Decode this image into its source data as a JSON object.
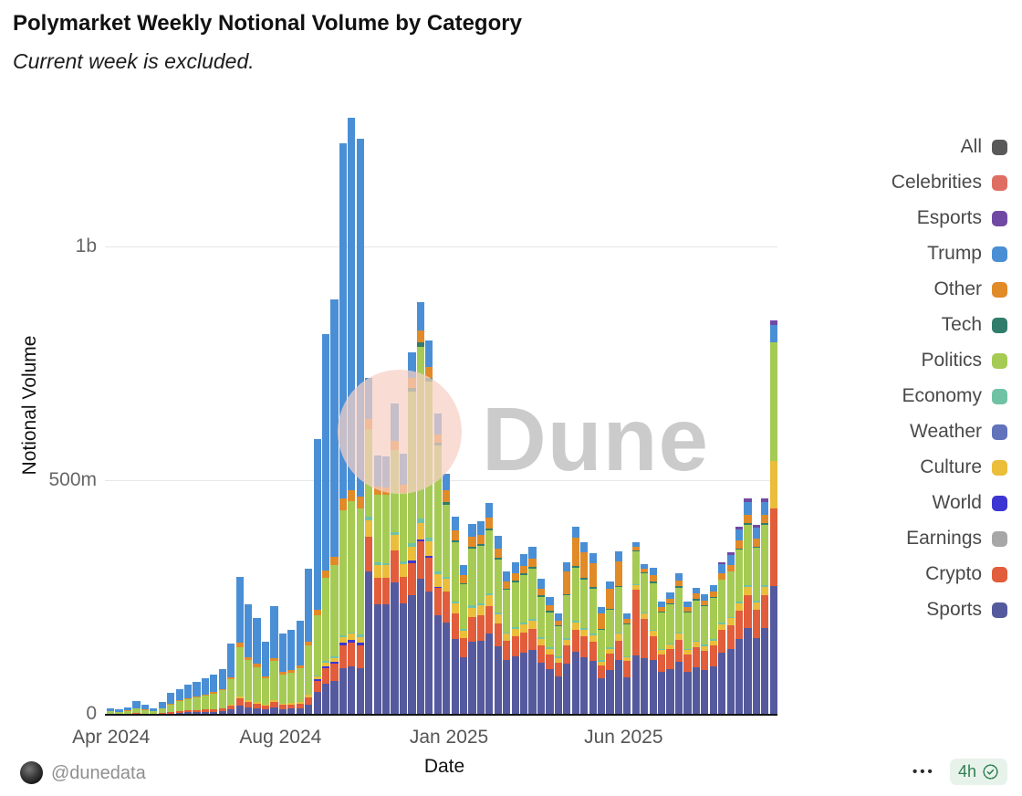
{
  "header": {
    "title": "Polymarket Weekly Notional Volume by Category",
    "subtitle": "Current week is excluded."
  },
  "watermark": {
    "text": "Dune"
  },
  "legend": [
    {
      "label": "All",
      "color": "#595959"
    },
    {
      "label": "Celebrities",
      "color": "#df6e62"
    },
    {
      "label": "Esports",
      "color": "#7049a3"
    },
    {
      "label": "Trump",
      "color": "#4a8fd5"
    },
    {
      "label": "Other",
      "color": "#e18a28"
    },
    {
      "label": "Tech",
      "color": "#307d6b"
    },
    {
      "label": "Politics",
      "color": "#a5cb54"
    },
    {
      "label": "Economy",
      "color": "#6fc3a4"
    },
    {
      "label": "Weather",
      "color": "#6173bb"
    },
    {
      "label": "Culture",
      "color": "#eabd3b"
    },
    {
      "label": "World",
      "color": "#3c35d2"
    },
    {
      "label": "Earnings",
      "color": "#a7a7a7"
    },
    {
      "label": "Crypto",
      "color": "#e15d3b"
    },
    {
      "label": "Sports",
      "color": "#555a9e"
    }
  ],
  "footer": {
    "handle": "@dunedata",
    "menu": "•••",
    "updated": "4h"
  },
  "chart_data": {
    "type": "bar",
    "stacked": true,
    "title": "Polymarket Weekly Notional Volume by Category",
    "subtitle": "Current week is excluded.",
    "xlabel": "Date",
    "ylabel": "Notional Volume",
    "unit": "millions USD notional volume per week",
    "weeks": 78,
    "x_range": [
      "Apr 2024",
      "Sep 2025"
    ],
    "x_ticks": [
      {
        "label": "Apr 2024",
        "week": 0.5
      },
      {
        "label": "Aug 2024",
        "week": 20.2
      },
      {
        "label": "Jan 2025",
        "week": 39.8
      },
      {
        "label": "Jun 2025",
        "week": 60.1
      }
    ],
    "y_ticks": [
      {
        "label": "0",
        "value": 0
      },
      {
        "label": "500m",
        "value": 500
      },
      {
        "label": "1b",
        "value": 1000
      }
    ],
    "ylim": [
      0,
      1280
    ],
    "grid": "horizontal",
    "legend_position": "right",
    "stack_order": [
      "sports",
      "crypto",
      "world",
      "culture",
      "economy",
      "politics",
      "tech",
      "other",
      "trump",
      "esports"
    ],
    "colors": {
      "sports": "#555a9e",
      "crypto": "#e15d3b",
      "world": "#3c35d2",
      "culture": "#eabd3b",
      "economy": "#6fc3a4",
      "politics": "#a5cb54",
      "tech": "#307d6b",
      "other": "#e18a28",
      "trump": "#4a8fd5",
      "esports": "#7049a3"
    },
    "series": {
      "trump": [
        6,
        5,
        7,
        16,
        11,
        6,
        14,
        24,
        23,
        28,
        30,
        34,
        38,
        42,
        72,
        140,
        113,
        98,
        74,
        110,
        82,
        86,
        96,
        155,
        365,
        505,
        550,
        760,
        795,
        765,
        87,
        67,
        67,
        80,
        68,
        54,
        61,
        56,
        45,
        36,
        30,
        22,
        28,
        29,
        32,
        27,
        21,
        23,
        24,
        25,
        20,
        17,
        15,
        19,
        24,
        22,
        21,
        14,
        17,
        21,
        11,
        10,
        10,
        16,
        12,
        13,
        15,
        12,
        13,
        12,
        14,
        20,
        21,
        24,
        28,
        25,
        28,
        37
      ],
      "politics": [
        4,
        3,
        5,
        9,
        7,
        4,
        9,
        16,
        21,
        25,
        27,
        30,
        33,
        38,
        54,
        105,
        85,
        74,
        56,
        83,
        62,
        65,
        72,
        105,
        129,
        178,
        195,
        268,
        280,
        270,
        188,
        145,
        145,
        175,
        146,
        323,
        368,
        334,
        269,
        154,
        127,
        95,
        122,
        124,
        135,
        114,
        91,
        97,
        102,
        107,
        86,
        75,
        64,
        91,
        112,
        103,
        96,
        64,
        80,
        97,
        68,
        70,
        85,
        100,
        77,
        83,
        96,
        77,
        86,
        82,
        88,
        91,
        97,
        112,
        129,
        113,
        129,
        255
      ],
      "sports": [
        0,
        0,
        0,
        0,
        0,
        0,
        0,
        0,
        2,
        3,
        3,
        4,
        4,
        5,
        9,
        18,
        14,
        12,
        9,
        14,
        10,
        11,
        12,
        19,
        47,
        65,
        71,
        98,
        102,
        98,
        305,
        235,
        234,
        282,
        236,
        254,
        289,
        262,
        211,
        195,
        160,
        121,
        154,
        157,
        171,
        144,
        116,
        123,
        130,
        136,
        109,
        95,
        81,
        107,
        132,
        121,
        113,
        76,
        94,
        115,
        79,
        125,
        119,
        115,
        89,
        96,
        111,
        89,
        100,
        94,
        102,
        130,
        138,
        160,
        184,
        162,
        184,
        273
      ],
      "crypto": [
        1,
        1,
        1,
        2,
        1,
        1,
        2,
        3,
        4,
        4,
        5,
        5,
        6,
        7,
        8,
        15,
        12,
        10,
        8,
        12,
        9,
        9,
        10,
        16,
        24,
        33,
        36,
        49,
        51,
        49,
        73,
        56,
        56,
        67,
        56,
        69,
        79,
        71,
        58,
        67,
        55,
        41,
        53,
        54,
        59,
        49,
        40,
        42,
        44,
        46,
        37,
        32,
        28,
        39,
        48,
        44,
        41,
        27,
        34,
        42,
        34,
        140,
        84,
        50,
        38,
        42,
        48,
        38,
        43,
        41,
        44,
        49,
        52,
        60,
        69,
        61,
        69,
        167
      ],
      "culture": [
        0,
        0,
        0,
        0,
        0,
        0,
        0,
        0,
        0,
        0,
        0,
        0,
        0,
        0,
        3,
        5,
        4,
        4,
        3,
        4,
        3,
        3,
        4,
        6,
        6,
        8,
        9,
        12,
        13,
        12,
        36,
        28,
        28,
        33,
        28,
        31,
        35,
        32,
        26,
        26,
        21,
        16,
        20,
        21,
        23,
        19,
        15,
        16,
        17,
        18,
        14,
        12,
        11,
        13,
        16,
        15,
        14,
        9,
        11,
        14,
        9,
        10,
        11,
        12,
        10,
        10,
        12,
        10,
        11,
        10,
        11,
        13,
        14,
        16,
        18,
        16,
        18,
        100
      ],
      "other": [
        1,
        0,
        1,
        1,
        1,
        1,
        1,
        2,
        2,
        2,
        3,
        3,
        3,
        3,
        4,
        9,
        7,
        7,
        5,
        7,
        6,
        6,
        6,
        9,
        12,
        16,
        18,
        24,
        25,
        25,
        22,
        17,
        16,
        20,
        17,
        23,
        26,
        24,
        19,
        26,
        21,
        16,
        20,
        19,
        22,
        19,
        15,
        16,
        17,
        18,
        15,
        12,
        10,
        49,
        60,
        55,
        51,
        34,
        43,
        52,
        9,
        8,
        8,
        13,
        10,
        11,
        12,
        10,
        11,
        11,
        11,
        13,
        14,
        16,
        18,
        16,
        18,
        0
      ],
      "economy": [
        0,
        0,
        0,
        0,
        0,
        0,
        0,
        0,
        0,
        0,
        0,
        0,
        0,
        0,
        0,
        0,
        0,
        0,
        0,
        0,
        0,
        0,
        0,
        0,
        2,
        3,
        3,
        4,
        3,
        4,
        7,
        5,
        5,
        7,
        6,
        8,
        10,
        8,
        7,
        5,
        4,
        4,
        5,
        4,
        5,
        4,
        3,
        4,
        4,
        4,
        4,
        3,
        3,
        3,
        4,
        4,
        4,
        3,
        3,
        3,
        2,
        2,
        2,
        3,
        2,
        3,
        3,
        2,
        3,
        3,
        3,
        3,
        3,
        4,
        4,
        4,
        4,
        0
      ],
      "tech": [
        0,
        0,
        0,
        0,
        0,
        0,
        0,
        0,
        0,
        0,
        0,
        0,
        0,
        0,
        0,
        0,
        0,
        0,
        0,
        0,
        0,
        0,
        0,
        0,
        0,
        0,
        0,
        0,
        0,
        0,
        0,
        0,
        0,
        0,
        0,
        7,
        9,
        7,
        5,
        5,
        4,
        3,
        4,
        4,
        4,
        4,
        3,
        3,
        3,
        3,
        3,
        3,
        2,
        3,
        4,
        3,
        3,
        2,
        2,
        3,
        2,
        2,
        2,
        3,
        2,
        2,
        3,
        2,
        3,
        2,
        2,
        1,
        1,
        2,
        3,
        2,
        3,
        0
      ],
      "world": [
        0,
        0,
        0,
        0,
        0,
        0,
        0,
        0,
        0,
        0,
        0,
        0,
        0,
        0,
        0,
        0,
        0,
        0,
        0,
        0,
        0,
        0,
        0,
        0,
        3,
        4,
        4,
        5,
        5,
        6,
        0,
        0,
        0,
        0,
        0,
        4,
        4,
        4,
        3,
        0,
        0,
        0,
        0,
        0,
        0,
        0,
        0,
        0,
        0,
        0,
        0,
        0,
        0,
        0,
        0,
        0,
        0,
        0,
        0,
        0,
        0,
        0,
        0,
        0,
        0,
        0,
        0,
        0,
        0,
        0,
        0,
        0,
        0,
        0,
        0,
        0,
        0,
        0
      ],
      "esports": [
        0,
        0,
        0,
        0,
        0,
        0,
        0,
        0,
        0,
        0,
        0,
        0,
        0,
        0,
        0,
        0,
        0,
        0,
        0,
        0,
        0,
        0,
        0,
        0,
        0,
        0,
        0,
        0,
        0,
        0,
        0,
        0,
        0,
        0,
        0,
        0,
        0,
        0,
        0,
        0,
        0,
        0,
        0,
        0,
        0,
        0,
        0,
        0,
        0,
        0,
        0,
        0,
        0,
        0,
        0,
        0,
        0,
        0,
        0,
        0,
        0,
        0,
        0,
        0,
        0,
        0,
        0,
        0,
        0,
        0,
        0,
        5,
        5,
        6,
        7,
        6,
        7,
        10
      ]
    }
  }
}
